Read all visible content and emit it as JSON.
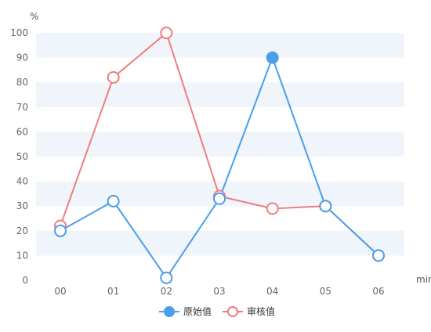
{
  "chart_data": {
    "type": "line",
    "categories": [
      "00",
      "01",
      "02",
      "03",
      "04",
      "05",
      "06"
    ],
    "ylabel": "%",
    "xlabel": "min",
    "ylim": [
      0,
      100
    ],
    "yticks": [
      0,
      10,
      20,
      30,
      40,
      50,
      60,
      70,
      80,
      90,
      100
    ],
    "grid": "alternating horizontal bands",
    "legend_position": "bottom-center",
    "series": [
      {
        "name": "原始值",
        "color": "#4a9fe8",
        "values": [
          20,
          32,
          1,
          33,
          90,
          30,
          10
        ],
        "highlighted_index": 4
      },
      {
        "name": "审核值",
        "color": "#f07c7c",
        "values": [
          22,
          82,
          100,
          34,
          29,
          30,
          10
        ]
      }
    ],
    "band_color": "#f0f4fb"
  }
}
